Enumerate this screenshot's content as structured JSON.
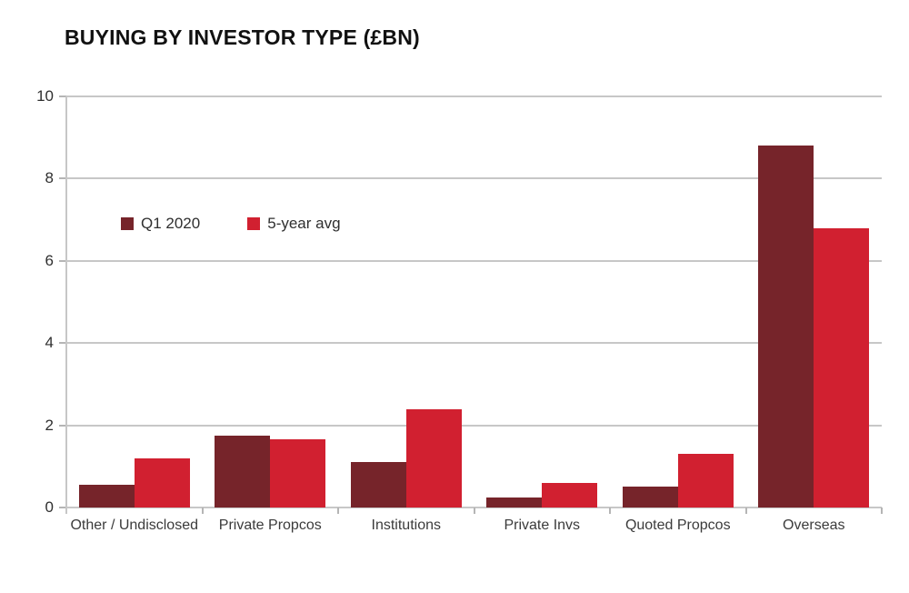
{
  "chart_data": {
    "type": "bar",
    "title": "BUYING BY INVESTOR TYPE (£BN)",
    "categories": [
      "Other / Undisclosed",
      "Private Propcos",
      "Institutions",
      "Private Invs",
      "Quoted Propcos",
      "Overseas"
    ],
    "series": [
      {
        "name": "Q1 2020",
        "color": "#76242A",
        "values": [
          0.55,
          1.75,
          1.1,
          0.25,
          0.5,
          8.8
        ]
      },
      {
        "name": "5-year avg",
        "color": "#D12030",
        "values": [
          1.2,
          1.65,
          2.4,
          0.6,
          1.3,
          6.8
        ]
      }
    ],
    "xlabel": "",
    "ylabel": "",
    "ylim": [
      0,
      10
    ],
    "y_ticks": [
      0,
      2,
      4,
      6,
      8,
      10
    ],
    "grid": true,
    "legend_position": "inside-top-left"
  },
  "colors": {
    "background": "#ffffff",
    "grid": "#c7c7c7",
    "axis": "#c7c7c7",
    "tick": "#b5b5b5",
    "label_text": "#3b3b3b",
    "title_text": "#111111"
  }
}
